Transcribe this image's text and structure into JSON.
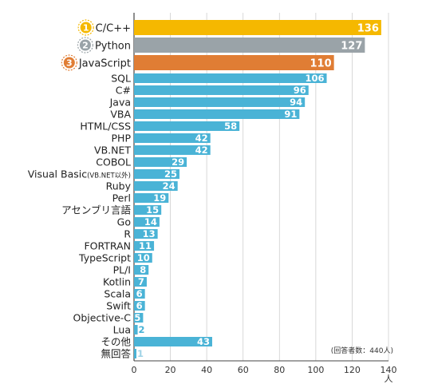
{
  "chart_data": {
    "type": "bar",
    "orientation": "horizontal",
    "categories": [
      "C/C++",
      "Python",
      "JavaScript",
      "SQL",
      "C#",
      "Java",
      "VBA",
      "HTML/CSS",
      "PHP",
      "VB.NET",
      "COBOL",
      "Visual Basic",
      "Ruby",
      "Perl",
      "アセンブリ言語",
      "Go",
      "R",
      "FORTRAN",
      "TypeScript",
      "PL/I",
      "Kotlin",
      "Scala",
      "Swift",
      "Objective-C",
      "Lua",
      "その他",
      "無回答"
    ],
    "category_notes": {
      "11": "(VB.NET以外)"
    },
    "values": [
      136,
      127,
      110,
      106,
      96,
      94,
      91,
      58,
      42,
      42,
      29,
      25,
      24,
      19,
      15,
      14,
      13,
      11,
      10,
      8,
      7,
      6,
      6,
      5,
      2,
      43,
      1
    ],
    "ranks": [
      {
        "index": 0,
        "label": "1",
        "color": "#f5b800"
      },
      {
        "index": 1,
        "label": "2",
        "color": "#9aa3a8"
      },
      {
        "index": 2,
        "label": "3",
        "color": "#e07d34"
      }
    ],
    "xlim": [
      0,
      140
    ],
    "xticks": [
      0,
      20,
      40,
      60,
      80,
      100,
      120,
      140
    ],
    "xunit": "人",
    "note": "(回答者数：440人)",
    "colors": {
      "default": "#4ab3d6",
      "rank1": "#f5b800",
      "rank2": "#9aa3a8",
      "rank3": "#e07d34"
    },
    "grid": true
  }
}
